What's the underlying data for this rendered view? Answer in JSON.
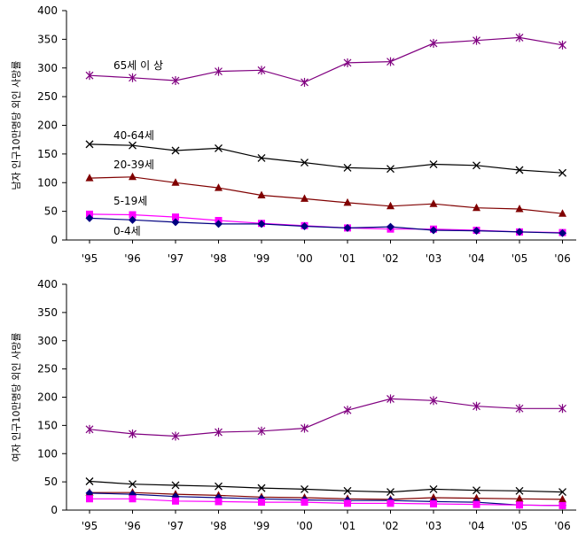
{
  "chart_data": [
    {
      "type": "line",
      "ylabel": "남자 인구10만명당 외인 사망률",
      "ylim": [
        0,
        400
      ],
      "yticks": [
        0,
        50,
        100,
        150,
        200,
        250,
        300,
        350,
        400
      ],
      "categories": [
        "'95",
        "'96",
        "'97",
        "'98",
        "'99",
        "'00",
        "'01",
        "'02",
        "'03",
        "'04",
        "'05",
        "'06"
      ],
      "grid": false,
      "series": [
        {
          "name": "65세 이 상",
          "color": "#800080",
          "marker": "asterisk",
          "values": [
            287,
            283,
            278,
            294,
            296,
            275,
            309,
            311,
            343,
            348,
            353,
            340
          ]
        },
        {
          "name": "40-64세",
          "color": "#000000",
          "marker": "x",
          "values": [
            167,
            165,
            156,
            160,
            143,
            135,
            126,
            124,
            132,
            130,
            122,
            117
          ]
        },
        {
          "name": "20-39세",
          "color": "#800000",
          "marker": "triangle",
          "values": [
            108,
            110,
            100,
            91,
            78,
            72,
            65,
            59,
            63,
            56,
            54,
            46
          ]
        },
        {
          "name": "5-19세",
          "color": "#ff00ff",
          "marker": "square",
          "values": [
            45,
            44,
            40,
            34,
            29,
            25,
            21,
            19,
            19,
            17,
            14,
            13
          ]
        },
        {
          "name": "0-4세",
          "color": "#000080",
          "marker": "diamond",
          "values": [
            38,
            35,
            31,
            28,
            28,
            24,
            21,
            23,
            17,
            16,
            14,
            12
          ]
        }
      ]
    },
    {
      "type": "line",
      "ylabel": "여자 인구10만명당 외인 사망률",
      "ylim": [
        0,
        400
      ],
      "yticks": [
        0,
        50,
        100,
        150,
        200,
        250,
        300,
        350,
        400
      ],
      "categories": [
        "'95",
        "'96",
        "'97",
        "'98",
        "'99",
        "'00",
        "'01",
        "'02",
        "'03",
        "'04",
        "'05",
        "'06"
      ],
      "grid": false,
      "series": [
        {
          "color": "#800080",
          "marker": "asterisk",
          "values": [
            143,
            135,
            131,
            138,
            140,
            145,
            177,
            197,
            194,
            184,
            180,
            180
          ]
        },
        {
          "color": "#000000",
          "marker": "x",
          "values": [
            51,
            46,
            44,
            42,
            39,
            37,
            34,
            32,
            37,
            35,
            34,
            32
          ]
        },
        {
          "color": "#800000",
          "marker": "triangle",
          "values": [
            31,
            31,
            28,
            26,
            23,
            22,
            20,
            19,
            22,
            21,
            20,
            19
          ]
        },
        {
          "color": "#000080",
          "marker": "diamond",
          "values": [
            30,
            28,
            24,
            22,
            20,
            18,
            17,
            17,
            15,
            14,
            9,
            8
          ]
        },
        {
          "color": "#ff00ff",
          "marker": "square",
          "values": [
            20,
            20,
            16,
            15,
            14,
            14,
            12,
            12,
            11,
            10,
            9,
            8
          ]
        }
      ]
    }
  ]
}
